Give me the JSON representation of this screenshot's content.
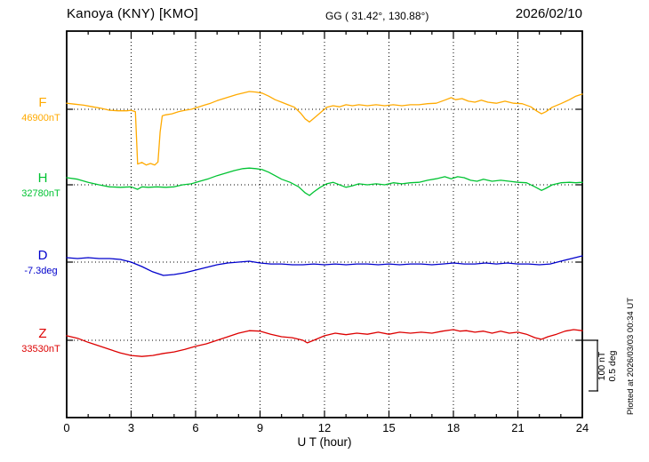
{
  "header": {
    "station": "Kanoya (KNY)  [KMO]",
    "coords": "GG ( 31.42°, 130.88°)",
    "date": "2026/02/10"
  },
  "axis": {
    "x_label": "U T (hour)",
    "x_ticks": [
      "0",
      "3",
      "6",
      "9",
      "12",
      "15",
      "18",
      "21",
      "24"
    ],
    "x_range": [
      0,
      24
    ]
  },
  "scale_bar": {
    "line1": "100 nT",
    "line2": "0.5 deg"
  },
  "plotted_note": "Plotted at 2026/03/03 00:34 UT",
  "components": [
    {
      "id": "F",
      "label": "F",
      "baseline_label": "46900nT",
      "color": "#ffaa00"
    },
    {
      "id": "H",
      "label": "H",
      "baseline_label": "32780nT",
      "color": "#00c332"
    },
    {
      "id": "D",
      "label": "D",
      "baseline_label": "-7.3deg",
      "color": "#0000cc"
    },
    {
      "id": "Z",
      "label": "Z",
      "baseline_label": "33530nT",
      "color": "#dd0000"
    }
  ],
  "chart_data": {
    "type": "line",
    "title": "Kanoya (KNY) [KMO] magnetogram 2026/02/10",
    "xlabel": "U T (hour)",
    "x_range_hours": [
      0,
      24
    ],
    "x_tick_step_hours": 3,
    "grid": "dotted vertical every 3h, dotted horizontal baseline per component",
    "legend_position": "left baseline labels",
    "scale": {
      "nT_per_div": 100,
      "deg_per_div": 0.5
    },
    "series": [
      {
        "name": "F",
        "unit": "nT",
        "baseline": 46900,
        "color": "#ffaa00",
        "points": [
          [
            0,
            12
          ],
          [
            0.4,
            10
          ],
          [
            0.8,
            8
          ],
          [
            1.2,
            5
          ],
          [
            1.6,
            2
          ],
          [
            2,
            -2
          ],
          [
            2.4,
            -3
          ],
          [
            2.8,
            -3
          ],
          [
            3,
            -2
          ],
          [
            3.2,
            -5
          ],
          [
            3.3,
            -108
          ],
          [
            3.5,
            -105
          ],
          [
            3.7,
            -110
          ],
          [
            3.9,
            -107
          ],
          [
            4.1,
            -110
          ],
          [
            4.25,
            -104
          ],
          [
            4.35,
            -45
          ],
          [
            4.45,
            -13
          ],
          [
            4.6,
            -11
          ],
          [
            4.9,
            -9
          ],
          [
            5.2,
            -5
          ],
          [
            5.5,
            -2
          ],
          [
            5.8,
            0
          ],
          [
            6.1,
            4
          ],
          [
            6.4,
            8
          ],
          [
            6.7,
            12
          ],
          [
            7,
            17
          ],
          [
            7.3,
            21
          ],
          [
            7.6,
            25
          ],
          [
            7.9,
            29
          ],
          [
            8.2,
            32
          ],
          [
            8.5,
            35
          ],
          [
            8.8,
            34
          ],
          [
            9.1,
            32
          ],
          [
            9.4,
            26
          ],
          [
            9.7,
            19
          ],
          [
            10,
            14
          ],
          [
            10.3,
            9
          ],
          [
            10.6,
            4
          ],
          [
            10.9,
            -8
          ],
          [
            11.1,
            -19
          ],
          [
            11.3,
            -25
          ],
          [
            11.5,
            -18
          ],
          [
            11.8,
            -7
          ],
          [
            12.1,
            4
          ],
          [
            12.4,
            7
          ],
          [
            12.7,
            5
          ],
          [
            13,
            9
          ],
          [
            13.3,
            7
          ],
          [
            13.6,
            9
          ],
          [
            14,
            7
          ],
          [
            14.4,
            9
          ],
          [
            14.8,
            7
          ],
          [
            15.2,
            9
          ],
          [
            15.6,
            7
          ],
          [
            16,
            9
          ],
          [
            16.4,
            9
          ],
          [
            16.8,
            11
          ],
          [
            17.2,
            12
          ],
          [
            17.6,
            18
          ],
          [
            17.9,
            23
          ],
          [
            18.1,
            19
          ],
          [
            18.4,
            21
          ],
          [
            18.7,
            16
          ],
          [
            19,
            14
          ],
          [
            19.3,
            18
          ],
          [
            19.6,
            14
          ],
          [
            20,
            12
          ],
          [
            20.4,
            16
          ],
          [
            20.8,
            12
          ],
          [
            21.2,
            11
          ],
          [
            21.6,
            5
          ],
          [
            21.9,
            -4
          ],
          [
            22.1,
            -9
          ],
          [
            22.3,
            -5
          ],
          [
            22.6,
            4
          ],
          [
            23,
            11
          ],
          [
            23.4,
            19
          ],
          [
            23.7,
            26
          ],
          [
            24,
            30
          ]
        ]
      },
      {
        "name": "H",
        "unit": "nT",
        "baseline": 32780,
        "color": "#00c332",
        "points": [
          [
            0,
            14
          ],
          [
            0.5,
            11
          ],
          [
            1,
            5
          ],
          [
            1.5,
            0
          ],
          [
            2,
            -4
          ],
          [
            2.5,
            -5
          ],
          [
            3,
            -4
          ],
          [
            3.3,
            -9
          ],
          [
            3.5,
            -4
          ],
          [
            3.8,
            -5
          ],
          [
            4.2,
            -4
          ],
          [
            4.6,
            -5
          ],
          [
            5,
            -4
          ],
          [
            5.4,
            0
          ],
          [
            5.8,
            2
          ],
          [
            6.2,
            7
          ],
          [
            6.6,
            12
          ],
          [
            7,
            18
          ],
          [
            7.4,
            23
          ],
          [
            7.8,
            28
          ],
          [
            8.2,
            32
          ],
          [
            8.5,
            33
          ],
          [
            8.8,
            32
          ],
          [
            9.1,
            30
          ],
          [
            9.4,
            25
          ],
          [
            9.7,
            18
          ],
          [
            10,
            11
          ],
          [
            10.4,
            5
          ],
          [
            10.8,
            -4
          ],
          [
            11.1,
            -16
          ],
          [
            11.3,
            -21
          ],
          [
            11.5,
            -14
          ],
          [
            11.8,
            -5
          ],
          [
            12.1,
            2
          ],
          [
            12.4,
            5
          ],
          [
            12.7,
            0
          ],
          [
            13,
            -5
          ],
          [
            13.3,
            -2
          ],
          [
            13.6,
            2
          ],
          [
            14,
            0
          ],
          [
            14.4,
            2
          ],
          [
            14.8,
            0
          ],
          [
            15.2,
            4
          ],
          [
            15.6,
            2
          ],
          [
            16,
            4
          ],
          [
            16.4,
            5
          ],
          [
            16.8,
            9
          ],
          [
            17.2,
            12
          ],
          [
            17.6,
            16
          ],
          [
            17.9,
            12
          ],
          [
            18.2,
            16
          ],
          [
            18.5,
            14
          ],
          [
            18.8,
            9
          ],
          [
            19.1,
            7
          ],
          [
            19.4,
            11
          ],
          [
            19.8,
            7
          ],
          [
            20.2,
            9
          ],
          [
            20.6,
            7
          ],
          [
            21,
            5
          ],
          [
            21.4,
            4
          ],
          [
            21.8,
            -4
          ],
          [
            22.1,
            -11
          ],
          [
            22.3,
            -7
          ],
          [
            22.6,
            0
          ],
          [
            23,
            4
          ],
          [
            23.4,
            5
          ],
          [
            23.7,
            4
          ],
          [
            24,
            5
          ]
        ]
      },
      {
        "name": "D",
        "unit": "deg",
        "baseline": -7.3,
        "color": "#0000cc",
        "points": [
          [
            0,
            0.044
          ],
          [
            0.5,
            0.035
          ],
          [
            1,
            0.044
          ],
          [
            1.5,
            0.035
          ],
          [
            2,
            0.035
          ],
          [
            2.5,
            0.026
          ],
          [
            3,
            0
          ],
          [
            3.5,
            -0.044
          ],
          [
            4,
            -0.096
          ],
          [
            4.5,
            -0.132
          ],
          [
            5,
            -0.123
          ],
          [
            5.5,
            -0.105
          ],
          [
            6,
            -0.079
          ],
          [
            6.5,
            -0.053
          ],
          [
            7,
            -0.026
          ],
          [
            7.5,
            -0.009
          ],
          [
            8,
            0
          ],
          [
            8.5,
            0.009
          ],
          [
            9,
            -0.009
          ],
          [
            9.5,
            -0.018
          ],
          [
            10,
            -0.018
          ],
          [
            10.5,
            -0.026
          ],
          [
            11,
            -0.026
          ],
          [
            11.5,
            -0.018
          ],
          [
            12,
            -0.026
          ],
          [
            12.5,
            -0.018
          ],
          [
            13,
            -0.026
          ],
          [
            13.5,
            -0.018
          ],
          [
            14,
            -0.018
          ],
          [
            14.5,
            -0.026
          ],
          [
            15,
            -0.018
          ],
          [
            15.5,
            -0.026
          ],
          [
            16,
            -0.018
          ],
          [
            16.5,
            -0.018
          ],
          [
            17,
            -0.026
          ],
          [
            17.5,
            -0.018
          ],
          [
            18,
            -0.009
          ],
          [
            18.5,
            -0.018
          ],
          [
            19,
            -0.018
          ],
          [
            19.5,
            -0.009
          ],
          [
            20,
            -0.018
          ],
          [
            20.5,
            -0.009
          ],
          [
            21,
            -0.018
          ],
          [
            21.5,
            -0.018
          ],
          [
            22,
            -0.026
          ],
          [
            22.5,
            -0.018
          ],
          [
            23,
            0.009
          ],
          [
            23.5,
            0.035
          ],
          [
            24,
            0.061
          ]
        ]
      },
      {
        "name": "Z",
        "unit": "nT",
        "baseline": 33530,
        "color": "#dd0000",
        "points": [
          [
            0,
            9
          ],
          [
            0.5,
            4
          ],
          [
            1,
            -4
          ],
          [
            1.5,
            -11
          ],
          [
            2,
            -18
          ],
          [
            2.5,
            -25
          ],
          [
            3,
            -30
          ],
          [
            3.5,
            -32
          ],
          [
            4,
            -30
          ],
          [
            4.5,
            -26
          ],
          [
            5,
            -23
          ],
          [
            5.5,
            -18
          ],
          [
            6,
            -12
          ],
          [
            6.5,
            -7
          ],
          [
            7,
            0
          ],
          [
            7.5,
            7
          ],
          [
            8,
            14
          ],
          [
            8.5,
            19
          ],
          [
            9,
            18
          ],
          [
            9.5,
            12
          ],
          [
            10,
            7
          ],
          [
            10.5,
            5
          ],
          [
            11,
            0
          ],
          [
            11.2,
            -5
          ],
          [
            11.5,
            0
          ],
          [
            12,
            9
          ],
          [
            12.5,
            14
          ],
          [
            13,
            11
          ],
          [
            13.5,
            14
          ],
          [
            14,
            12
          ],
          [
            14.5,
            16
          ],
          [
            15,
            12
          ],
          [
            15.5,
            16
          ],
          [
            16,
            14
          ],
          [
            16.5,
            16
          ],
          [
            17,
            14
          ],
          [
            17.5,
            18
          ],
          [
            18,
            21
          ],
          [
            18.3,
            18
          ],
          [
            18.6,
            19
          ],
          [
            19,
            16
          ],
          [
            19.4,
            18
          ],
          [
            19.8,
            14
          ],
          [
            20.2,
            18
          ],
          [
            20.6,
            14
          ],
          [
            21,
            16
          ],
          [
            21.4,
            12
          ],
          [
            21.8,
            5
          ],
          [
            22.1,
            2
          ],
          [
            22.4,
            7
          ],
          [
            22.8,
            12
          ],
          [
            23.2,
            18
          ],
          [
            23.6,
            21
          ],
          [
            24,
            19
          ]
        ]
      }
    ]
  }
}
